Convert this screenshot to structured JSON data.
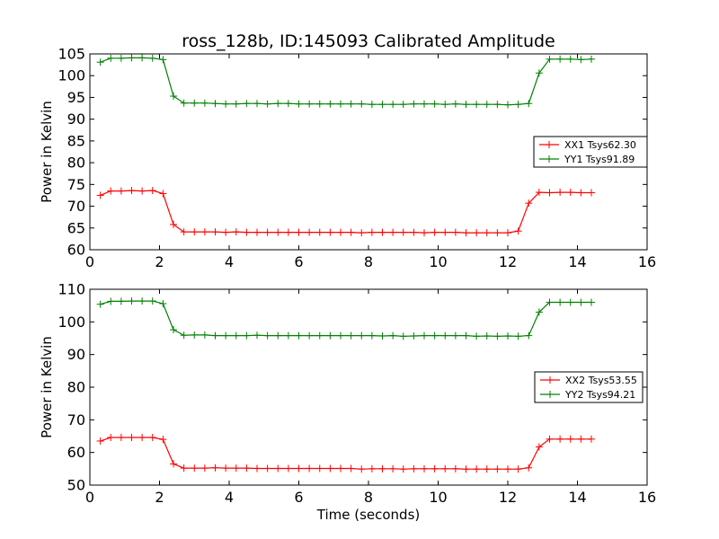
{
  "colors": {
    "red": "#ff0000",
    "green": "#008000"
  },
  "chart_data": [
    {
      "type": "line",
      "title": "ross_128b, ID:145093 Calibrated Amplitude",
      "xlabel": "",
      "ylabel": "Power in Kelvin",
      "xlim": [
        0,
        16
      ],
      "ylim": [
        60,
        105
      ],
      "xticks": [
        0,
        2,
        4,
        6,
        8,
        10,
        12,
        14,
        16
      ],
      "yticks": [
        60,
        65,
        70,
        75,
        80,
        85,
        90,
        95,
        100,
        105
      ],
      "legend_position": "center-right",
      "x": [
        0.3,
        0.6,
        0.9,
        1.2,
        1.5,
        1.8,
        2.1,
        2.4,
        2.7,
        3.0,
        3.3,
        3.6,
        3.9,
        4.2,
        4.5,
        4.8,
        5.1,
        5.4,
        5.7,
        6.0,
        6.3,
        6.6,
        6.9,
        7.2,
        7.5,
        7.8,
        8.1,
        8.4,
        8.7,
        9.0,
        9.3,
        9.6,
        9.9,
        10.2,
        10.5,
        10.8,
        11.1,
        11.4,
        11.7,
        12.0,
        12.3,
        12.6,
        12.9,
        13.2,
        13.5,
        13.8,
        14.1,
        14.4
      ],
      "series": [
        {
          "name": "XX1 Tsys62.30",
          "color": "#ff0000",
          "values": [
            72.5,
            73.5,
            73.5,
            73.6,
            73.5,
            73.6,
            72.9,
            65.8,
            64.1,
            64.1,
            64.1,
            64.1,
            64.0,
            64.1,
            64.0,
            64.0,
            64.0,
            64.0,
            64.0,
            64.0,
            64.0,
            64.0,
            64.0,
            64.0,
            64.0,
            63.9,
            64.0,
            64.0,
            64.0,
            64.0,
            64.0,
            63.9,
            64.0,
            64.0,
            64.0,
            63.9,
            63.9,
            63.9,
            63.9,
            63.9,
            64.3,
            70.7,
            73.2,
            73.1,
            73.2,
            73.2,
            73.1,
            73.1
          ]
        },
        {
          "name": "YY1 Tsys91.89",
          "color": "#008000",
          "values": [
            103.1,
            104.0,
            104.0,
            104.1,
            104.1,
            104.0,
            103.7,
            95.3,
            93.7,
            93.7,
            93.7,
            93.6,
            93.5,
            93.5,
            93.6,
            93.6,
            93.5,
            93.6,
            93.6,
            93.5,
            93.5,
            93.5,
            93.5,
            93.5,
            93.5,
            93.5,
            93.4,
            93.4,
            93.4,
            93.4,
            93.5,
            93.5,
            93.5,
            93.4,
            93.5,
            93.4,
            93.4,
            93.4,
            93.4,
            93.3,
            93.4,
            93.6,
            100.6,
            103.8,
            103.8,
            103.8,
            103.7,
            103.8
          ]
        }
      ]
    },
    {
      "type": "line",
      "title": "",
      "xlabel": "Time (seconds)",
      "ylabel": "Power in Kelvin",
      "xlim": [
        0,
        16
      ],
      "ylim": [
        50,
        110
      ],
      "xticks": [
        0,
        2,
        4,
        6,
        8,
        10,
        12,
        14,
        16
      ],
      "yticks": [
        50,
        60,
        70,
        80,
        90,
        100,
        110
      ],
      "legend_position": "center-right",
      "x": [
        0.3,
        0.6,
        0.9,
        1.2,
        1.5,
        1.8,
        2.1,
        2.4,
        2.7,
        3.0,
        3.3,
        3.6,
        3.9,
        4.2,
        4.5,
        4.8,
        5.1,
        5.4,
        5.7,
        6.0,
        6.3,
        6.6,
        6.9,
        7.2,
        7.5,
        7.8,
        8.1,
        8.4,
        8.7,
        9.0,
        9.3,
        9.6,
        9.9,
        10.2,
        10.5,
        10.8,
        11.1,
        11.4,
        11.7,
        12.0,
        12.3,
        12.6,
        12.9,
        13.2,
        13.5,
        13.8,
        14.1,
        14.4
      ],
      "series": [
        {
          "name": "XX2 Tsys53.55",
          "color": "#ff0000",
          "values": [
            63.5,
            64.6,
            64.6,
            64.6,
            64.6,
            64.6,
            64.0,
            56.5,
            55.2,
            55.2,
            55.2,
            55.3,
            55.2,
            55.2,
            55.2,
            55.1,
            55.1,
            55.1,
            55.1,
            55.1,
            55.1,
            55.1,
            55.1,
            55.1,
            55.1,
            54.9,
            55.0,
            55.0,
            55.0,
            54.9,
            55.0,
            55.0,
            55.0,
            55.0,
            55.0,
            54.9,
            54.9,
            54.9,
            54.9,
            54.9,
            54.9,
            55.3,
            61.7,
            64.1,
            64.1,
            64.1,
            64.1,
            64.1
          ]
        },
        {
          "name": "YY2 Tsys94.21",
          "color": "#008000",
          "values": [
            105.4,
            106.3,
            106.3,
            106.4,
            106.4,
            106.4,
            105.6,
            97.6,
            95.9,
            96.0,
            96.0,
            95.8,
            95.8,
            95.8,
            95.8,
            95.9,
            95.8,
            95.8,
            95.8,
            95.8,
            95.8,
            95.8,
            95.8,
            95.8,
            95.8,
            95.8,
            95.8,
            95.7,
            95.8,
            95.6,
            95.7,
            95.8,
            95.8,
            95.8,
            95.8,
            95.8,
            95.6,
            95.7,
            95.6,
            95.7,
            95.6,
            95.8,
            103.0,
            106.0,
            106.0,
            106.0,
            106.0,
            106.0
          ]
        }
      ]
    }
  ]
}
